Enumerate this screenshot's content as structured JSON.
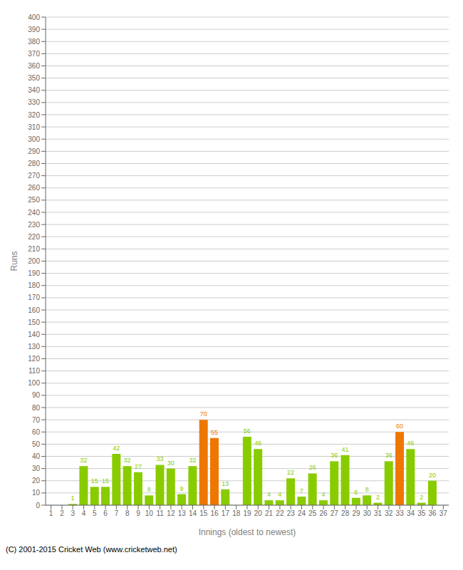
{
  "chart_data": {
    "type": "bar",
    "categories": [
      "1",
      "2",
      "3",
      "4",
      "5",
      "6",
      "7",
      "8",
      "9",
      "10",
      "11",
      "12",
      "13",
      "14",
      "15",
      "16",
      "17",
      "18",
      "19",
      "20",
      "21",
      "22",
      "23",
      "24",
      "25",
      "26",
      "27",
      "28",
      "29",
      "30",
      "31",
      "32",
      "33",
      "34",
      "35",
      "36",
      "37"
    ],
    "values": [
      0,
      0,
      1,
      32,
      15,
      15,
      42,
      32,
      27,
      8,
      33,
      30,
      9,
      32,
      70,
      55,
      13,
      0,
      56,
      46,
      4,
      4,
      22,
      7,
      26,
      4,
      36,
      41,
      6,
      8,
      2,
      36,
      60,
      46,
      2,
      20,
      0
    ],
    "colors": [
      "#88cc00",
      "#88cc00",
      "#88cc00",
      "#88cc00",
      "#88cc00",
      "#88cc00",
      "#88cc00",
      "#88cc00",
      "#88cc00",
      "#88cc00",
      "#88cc00",
      "#88cc00",
      "#88cc00",
      "#88cc00",
      "#ee7700",
      "#ee7700",
      "#88cc00",
      "#88cc00",
      "#88cc00",
      "#88cc00",
      "#88cc00",
      "#88cc00",
      "#88cc00",
      "#88cc00",
      "#88cc00",
      "#88cc00",
      "#88cc00",
      "#88cc00",
      "#88cc00",
      "#88cc00",
      "#88cc00",
      "#88cc00",
      "#ee7700",
      "#88cc00",
      "#88cc00",
      "#88cc00",
      "#88cc00"
    ],
    "xlabel": "Innings (oldest to newest)",
    "ylabel": "Runs",
    "ylim": [
      0,
      400
    ],
    "yticks": [
      0,
      10,
      20,
      30,
      40,
      50,
      60,
      70,
      80,
      90,
      100,
      110,
      120,
      130,
      140,
      150,
      160,
      170,
      180,
      190,
      200,
      210,
      220,
      230,
      240,
      250,
      260,
      270,
      280,
      290,
      300,
      310,
      320,
      330,
      340,
      350,
      360,
      370,
      380,
      390,
      400
    ],
    "grid": true,
    "data_labels": true,
    "annotations": [
      "(C) 2001-2015 Cricket Web (www.cricketweb.net)"
    ]
  }
}
